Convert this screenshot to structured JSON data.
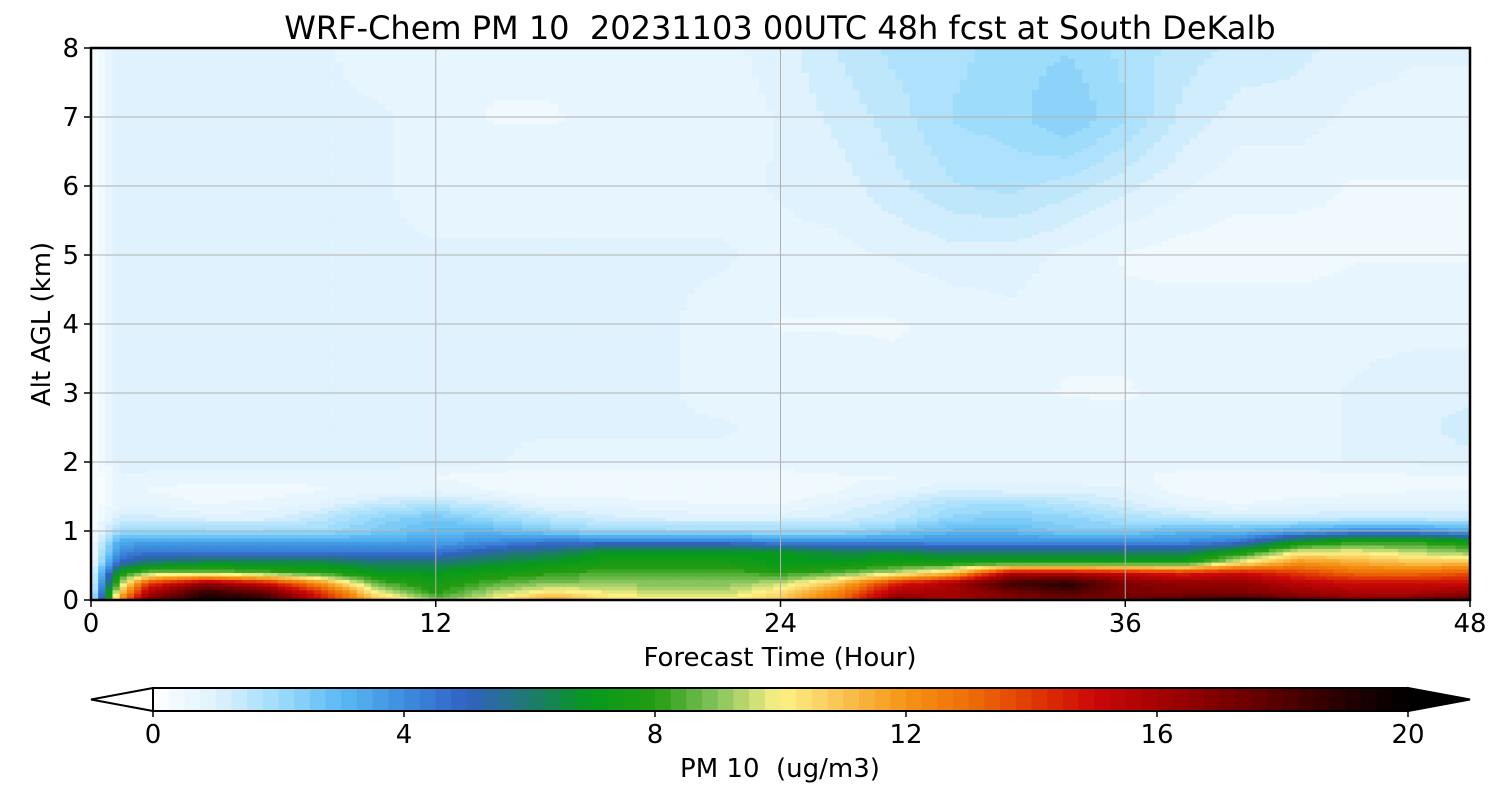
{
  "chart_data": {
    "type": "heatmap",
    "title": "WRF-Chem PM 10  20231103 00UTC 48h fcst at South DeKalb",
    "xlabel": "Forecast Time (Hour)",
    "ylabel": "Alt AGL (km)",
    "xlim": [
      0,
      48
    ],
    "ylim": [
      0,
      8
    ],
    "x_ticks": [
      0,
      12,
      24,
      36,
      48
    ],
    "y_ticks": [
      0,
      1,
      2,
      3,
      4,
      5,
      6,
      7,
      8
    ],
    "grid": true,
    "colorbar": {
      "label": "PM 10  (ug/m3)",
      "orientation": "horizontal",
      "range": [
        0,
        20
      ],
      "ticks": [
        0,
        4,
        8,
        12,
        16,
        20
      ],
      "extend": "both",
      "colormap_stops": [
        {
          "value": 0,
          "color": "#ffffff"
        },
        {
          "value": 1,
          "color": "#dff2fd"
        },
        {
          "value": 2,
          "color": "#9edcfb"
        },
        {
          "value": 3,
          "color": "#5ab9f3"
        },
        {
          "value": 4,
          "color": "#3c8ede"
        },
        {
          "value": 5,
          "color": "#3261c2"
        },
        {
          "value": 6,
          "color": "#1e7a6e"
        },
        {
          "value": 7,
          "color": "#069a1a"
        },
        {
          "value": 8,
          "color": "#239c12"
        },
        {
          "value": 9,
          "color": "#86c45c"
        },
        {
          "value": 10,
          "color": "#fef287"
        },
        {
          "value": 11,
          "color": "#f8c252"
        },
        {
          "value": 12,
          "color": "#f69414"
        },
        {
          "value": 13,
          "color": "#ee6e08"
        },
        {
          "value": 14,
          "color": "#e03a02"
        },
        {
          "value": 15,
          "color": "#cc0808"
        },
        {
          "value": 16,
          "color": "#a60202"
        },
        {
          "value": 17,
          "color": "#7e0000"
        },
        {
          "value": 18,
          "color": "#530000"
        },
        {
          "value": 19,
          "color": "#240000"
        },
        {
          "value": 20,
          "color": "#000000"
        }
      ]
    },
    "grid_data": {
      "x": [
        0,
        1,
        2,
        4,
        6,
        8,
        10,
        12,
        14,
        16,
        18,
        20,
        22,
        24,
        26,
        28,
        30,
        32,
        34,
        36,
        38,
        40,
        42,
        44,
        46,
        48
      ],
      "y": [
        0,
        0.1,
        0.25,
        0.4,
        0.55,
        0.7,
        0.85,
        1.0,
        1.2,
        1.4,
        1.6,
        1.8,
        2.0,
        2.5,
        3.0,
        4.0,
        5.0,
        6.0,
        7.0,
        8.0
      ],
      "values": [
        [
          1.0,
          12.0,
          17.0,
          19.5,
          19.0,
          15.0,
          11.0,
          9.0,
          10.0,
          12.0,
          10.5,
          10.0,
          10.0,
          11.0,
          13.0,
          17.0,
          16.0,
          17.0,
          17.0,
          17.5,
          18.5,
          19.5,
          18.0,
          17.0,
          17.5,
          18.5
        ],
        [
          0.8,
          11.0,
          16.0,
          19.0,
          18.0,
          14.5,
          10.0,
          8.0,
          9.5,
          10.5,
          10.0,
          9.5,
          9.5,
          10.5,
          12.5,
          16.0,
          16.0,
          17.0,
          18.0,
          17.0,
          17.0,
          17.0,
          16.5,
          16.0,
          16.0,
          16.5
        ],
        [
          0.6,
          9.0,
          14.0,
          16.5,
          15.0,
          12.0,
          8.5,
          7.5,
          8.5,
          9.0,
          9.0,
          9.0,
          9.0,
          9.5,
          11.0,
          14.5,
          16.0,
          18.5,
          19.0,
          17.0,
          16.5,
          16.5,
          15.5,
          15.0,
          15.0,
          15.0
        ],
        [
          0.5,
          7.5,
          9.0,
          9.0,
          8.5,
          8.0,
          7.0,
          7.0,
          7.5,
          8.0,
          8.5,
          8.5,
          8.5,
          8.0,
          8.5,
          9.5,
          11.0,
          15.5,
          15.5,
          15.0,
          14.5,
          15.0,
          14.0,
          13.0,
          13.0,
          13.5
        ],
        [
          0.4,
          5.0,
          6.0,
          6.5,
          6.5,
          6.5,
          6.0,
          6.0,
          6.5,
          7.0,
          7.5,
          7.5,
          7.5,
          7.0,
          7.0,
          7.5,
          7.5,
          7.5,
          7.5,
          7.5,
          7.5,
          10.0,
          12.0,
          11.5,
          11.0,
          11.0
        ],
        [
          0.3,
          4.0,
          4.5,
          4.5,
          4.5,
          4.5,
          4.5,
          4.5,
          5.5,
          6.0,
          7.0,
          7.0,
          7.0,
          7.0,
          6.5,
          6.5,
          6.0,
          6.0,
          6.0,
          6.0,
          6.0,
          7.5,
          10.0,
          10.0,
          9.5,
          9.0
        ],
        [
          0.25,
          3.5,
          3.5,
          3.5,
          3.5,
          3.5,
          3.5,
          3.5,
          4.0,
          4.5,
          4.5,
          4.5,
          4.5,
          4.0,
          4.0,
          4.0,
          4.0,
          4.0,
          4.0,
          4.0,
          4.0,
          4.5,
          7.0,
          8.0,
          8.0,
          7.5
        ],
        [
          0.2,
          2.0,
          2.0,
          2.0,
          2.0,
          2.0,
          2.5,
          3.0,
          3.0,
          2.5,
          2.0,
          2.0,
          2.0,
          2.0,
          2.0,
          2.5,
          3.0,
          3.0,
          2.5,
          2.5,
          3.0,
          3.0,
          3.5,
          4.0,
          4.0,
          3.5
        ],
        [
          0.15,
          1.2,
          1.2,
          1.0,
          1.0,
          1.5,
          2.2,
          2.6,
          2.0,
          1.5,
          1.2,
          1.0,
          1.0,
          1.0,
          1.2,
          1.5,
          2.2,
          2.4,
          2.2,
          1.8,
          1.5,
          1.3,
          1.3,
          1.3,
          1.3,
          1.3
        ],
        [
          0.1,
          0.8,
          0.8,
          0.6,
          0.7,
          0.9,
          1.4,
          1.6,
          1.3,
          0.8,
          0.8,
          0.7,
          0.6,
          0.6,
          0.9,
          1.3,
          1.8,
          1.9,
          1.6,
          1.2,
          0.8,
          0.6,
          0.8,
          0.9,
          0.9,
          0.9
        ],
        [
          0.1,
          0.7,
          0.6,
          0.5,
          0.5,
          0.6,
          0.7,
          0.8,
          0.6,
          0.4,
          0.4,
          0.4,
          0.4,
          0.4,
          0.6,
          0.8,
          1.1,
          1.0,
          1.0,
          0.9,
          0.5,
          0.4,
          0.4,
          0.5,
          0.6,
          0.6
        ],
        [
          0.1,
          0.8,
          0.8,
          0.7,
          0.7,
          0.7,
          0.7,
          0.6,
          0.5,
          0.4,
          0.5,
          0.5,
          0.5,
          0.5,
          0.6,
          0.6,
          0.7,
          0.8,
          0.7,
          0.7,
          0.5,
          0.5,
          0.5,
          0.5,
          0.6,
          0.6
        ],
        [
          0.1,
          1.0,
          1.0,
          1.0,
          1.0,
          1.0,
          1.0,
          1.0,
          0.9,
          0.8,
          0.8,
          0.8,
          0.8,
          0.8,
          0.8,
          0.8,
          0.8,
          0.8,
          0.8,
          0.8,
          0.8,
          0.8,
          0.8,
          0.9,
          0.9,
          1.0
        ],
        [
          0.1,
          1.0,
          1.0,
          1.0,
          0.9,
          0.9,
          0.9,
          0.9,
          0.9,
          0.9,
          0.9,
          0.9,
          0.9,
          0.8,
          0.8,
          0.8,
          0.8,
          0.8,
          0.8,
          0.7,
          0.8,
          0.8,
          0.8,
          0.9,
          1.0,
          1.3
        ],
        [
          0.1,
          1.0,
          0.9,
          0.9,
          0.9,
          0.9,
          0.9,
          0.9,
          0.9,
          0.9,
          0.9,
          0.9,
          0.8,
          0.8,
          0.8,
          0.7,
          0.7,
          0.7,
          0.6,
          0.6,
          0.7,
          0.8,
          0.8,
          0.9,
          1.0,
          1.0
        ],
        [
          0.1,
          1.0,
          0.9,
          0.9,
          0.9,
          0.9,
          0.9,
          0.9,
          0.9,
          0.9,
          0.9,
          0.9,
          0.8,
          0.6,
          0.6,
          0.6,
          0.7,
          0.8,
          0.7,
          0.7,
          0.8,
          0.8,
          0.8,
          0.8,
          0.8,
          0.8
        ],
        [
          0.1,
          1.0,
          0.9,
          0.9,
          0.9,
          0.9,
          0.9,
          0.9,
          0.9,
          0.9,
          0.9,
          0.9,
          0.9,
          0.8,
          0.8,
          0.9,
          1.0,
          1.0,
          0.8,
          0.6,
          0.5,
          0.5,
          0.5,
          0.6,
          0.6,
          0.6
        ],
        [
          0.1,
          1.0,
          0.9,
          0.9,
          0.9,
          0.9,
          0.9,
          0.8,
          0.8,
          0.8,
          0.8,
          0.8,
          0.8,
          0.9,
          1.0,
          1.3,
          1.6,
          1.7,
          1.5,
          1.2,
          0.9,
          0.7,
          0.7,
          0.6,
          0.6,
          0.6
        ],
        [
          0.1,
          1.0,
          0.9,
          1.0,
          0.9,
          0.9,
          0.9,
          0.8,
          0.6,
          0.6,
          0.7,
          0.7,
          0.7,
          0.9,
          1.2,
          1.5,
          1.9,
          2.0,
          2.4,
          1.9,
          1.3,
          1.0,
          1.0,
          0.8,
          0.8,
          0.8
        ],
        [
          0.1,
          1.0,
          0.9,
          0.9,
          0.9,
          0.9,
          0.8,
          0.8,
          0.7,
          0.7,
          0.8,
          0.8,
          0.8,
          1.0,
          1.4,
          1.7,
          1.8,
          2.0,
          2.1,
          1.8,
          1.5,
          1.3,
          1.2,
          1.0,
          0.9,
          0.9
        ]
      ]
    }
  }
}
